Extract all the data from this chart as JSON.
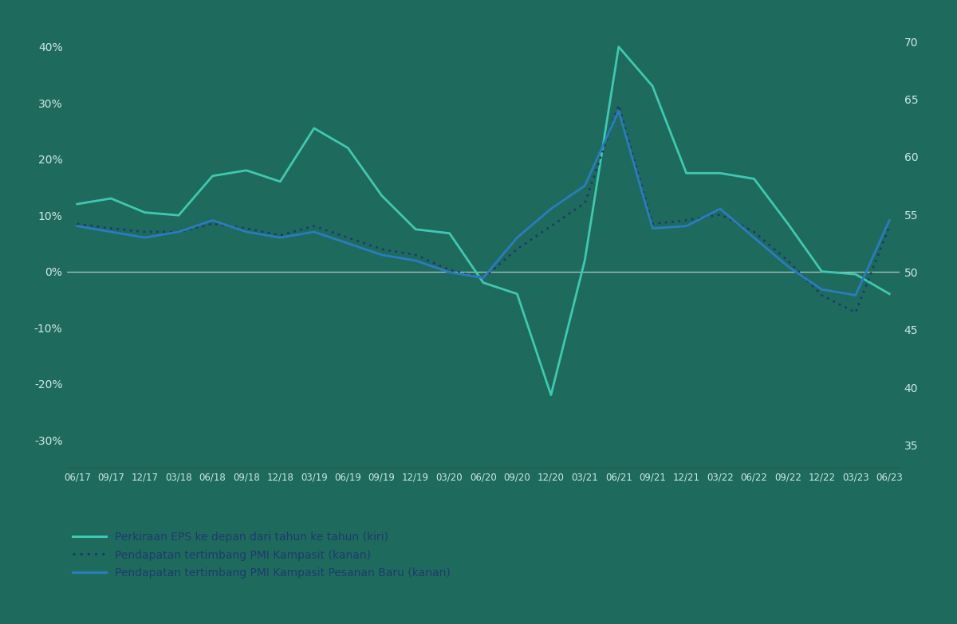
{
  "background_color": "#1e6b5e",
  "line1_color": "#3ec9b0",
  "line2_color": "#1e3a6e",
  "line3_color": "#2b7bbf",
  "left_ylim": [
    -0.35,
    0.45
  ],
  "right_ylim": [
    33,
    72
  ],
  "zero_line_color": "#b0c4c0",
  "text_color": "#d0e8e4",
  "axis_label_color": "#3a7fcc",
  "legend_text_color": "#1e3a6e",
  "legend_bg": "#e8f0ee",
  "bottom_line_color": "#2a5a50",
  "xtick_labels": [
    "06/17",
    "09/17",
    "12/17",
    "03/18",
    "06/18",
    "09/18",
    "12/18",
    "03/19",
    "06/19",
    "09/19",
    "12/19",
    "03/20",
    "06/20",
    "09/20",
    "12/20",
    "03/21",
    "06/21",
    "09/21",
    "12/21",
    "03/22",
    "06/22",
    "09/22",
    "12/22",
    "03/23",
    "06/23"
  ],
  "left_ytick_labels": [
    "-30%",
    "-20%",
    "-10%",
    "0%",
    "10%",
    "20%",
    "30%",
    "40%"
  ],
  "left_ytick_vals": [
    -0.3,
    -0.2,
    -0.1,
    0.0,
    0.1,
    0.2,
    0.3,
    0.4
  ],
  "right_ytick_labels": [
    "35",
    "40",
    "45",
    "50",
    "55",
    "60",
    "65",
    "70"
  ],
  "right_ytick_vals": [
    35,
    40,
    45,
    50,
    55,
    60,
    65,
    70
  ],
  "eps_data": [
    0.12,
    0.13,
    0.105,
    0.1,
    0.17,
    0.18,
    0.16,
    0.255,
    0.22,
    0.135,
    0.075,
    0.068,
    -0.02,
    -0.04,
    -0.22,
    0.02,
    0.4,
    0.33,
    0.175,
    0.175,
    0.165,
    0.085,
    0.0,
    -0.005,
    -0.04
  ],
  "pmi_composite_data": [
    54.2,
    53.8,
    53.5,
    53.5,
    54.2,
    53.8,
    53.2,
    54.0,
    53.0,
    52.0,
    51.5,
    50.2,
    49.5,
    52.0,
    54.0,
    56.0,
    64.5,
    54.2,
    54.5,
    55.0,
    53.5,
    51.0,
    48.0,
    46.5,
    54.0
  ],
  "pmi_new_orders_data": [
    54.0,
    53.5,
    53.0,
    53.5,
    54.5,
    53.5,
    53.0,
    53.5,
    52.5,
    51.5,
    51.0,
    50.0,
    49.5,
    53.0,
    55.5,
    57.5,
    64.0,
    53.8,
    54.0,
    55.5,
    53.0,
    50.5,
    48.5,
    48.0,
    54.5
  ],
  "legend1": "Perkiraan EPS ke depan dari tahun ke tahun (kiri)",
  "legend2": "Pendapatan tertimbang PMI Kampasit (kanan)",
  "legend3": "Pendapatan tertimbang PMI Kampasit Pesanan Baru (kanan)"
}
